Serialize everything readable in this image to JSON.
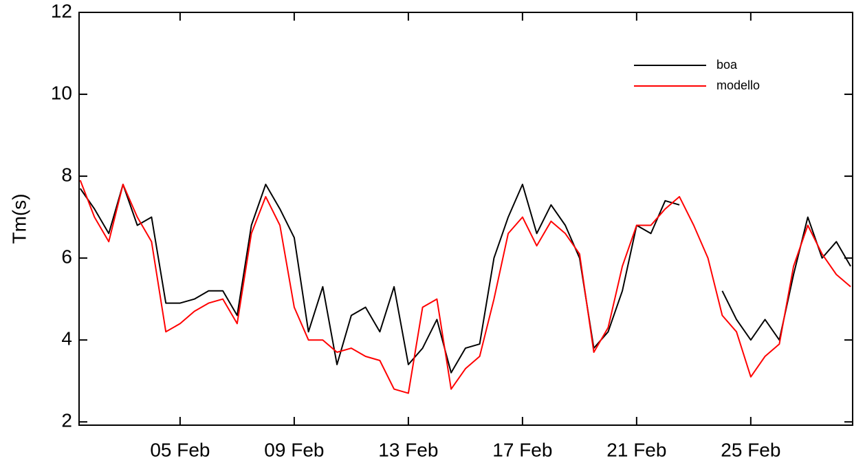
{
  "chart_data": {
    "type": "line",
    "y_label": "Tm(s)",
    "x": [
      1.5,
      2,
      2.5,
      3,
      3.5,
      4,
      4.5,
      5,
      5.5,
      6,
      6.5,
      7,
      7.5,
      8,
      8.5,
      9,
      9.5,
      10,
      10.5,
      11,
      11.5,
      12,
      12.5,
      13,
      13.5,
      14,
      14.5,
      15,
      15.5,
      16,
      16.5,
      17,
      17.5,
      18,
      18.5,
      19,
      19.5,
      20,
      20.5,
      21,
      21.5,
      22,
      22.5,
      23,
      23.5,
      24,
      24.5,
      25,
      25.5,
      26,
      26.5,
      27,
      27.5,
      28,
      28.5
    ],
    "series": [
      {
        "name": "boa",
        "color": "#000000",
        "values": [
          7.7,
          7.2,
          6.6,
          7.8,
          6.8,
          7.0,
          4.9,
          4.9,
          5.0,
          5.2,
          5.2,
          4.6,
          6.8,
          7.8,
          7.2,
          6.5,
          4.2,
          5.3,
          3.4,
          4.6,
          4.8,
          4.2,
          5.3,
          3.4,
          3.8,
          4.5,
          3.2,
          3.8,
          3.9,
          6.0,
          7.0,
          7.8,
          6.6,
          7.3,
          6.8,
          6.0,
          3.8,
          4.2,
          5.2,
          6.8,
          6.6,
          7.4,
          7.3,
          null,
          null,
          5.2,
          4.5,
          4.0,
          4.5,
          4.0,
          5.6,
          7.0,
          6.0,
          6.4,
          5.8
        ]
      },
      {
        "name": "modello",
        "color": "#ff0000",
        "values": [
          7.9,
          7.0,
          6.4,
          7.8,
          7.0,
          6.4,
          4.2,
          4.4,
          4.7,
          4.9,
          5.0,
          4.4,
          6.6,
          7.5,
          6.8,
          4.8,
          4.0,
          4.0,
          3.7,
          3.8,
          3.6,
          3.5,
          2.8,
          2.7,
          4.8,
          5.0,
          2.8,
          3.3,
          3.6,
          5.0,
          6.6,
          7.0,
          6.3,
          6.9,
          6.6,
          6.1,
          3.7,
          4.3,
          5.8,
          6.8,
          6.8,
          7.2,
          7.5,
          6.8,
          6.0,
          4.6,
          4.2,
          3.1,
          3.6,
          3.9,
          5.8,
          6.8,
          6.1,
          5.6,
          5.3
        ]
      }
    ],
    "xlim": [
      1.46,
      28.57
    ],
    "xticks": [
      {
        "value": 5,
        "label": "05 Feb"
      },
      {
        "value": 9,
        "label": "09 Feb"
      },
      {
        "value": 13,
        "label": "13 Feb"
      },
      {
        "value": 17,
        "label": "17 Feb"
      },
      {
        "value": 21,
        "label": "21 Feb"
      },
      {
        "value": 25,
        "label": "25 Feb"
      }
    ],
    "ylim": [
      1.92,
      12
    ],
    "yticks": [
      2,
      4,
      6,
      8,
      10,
      12
    ],
    "legend": "upper right"
  }
}
